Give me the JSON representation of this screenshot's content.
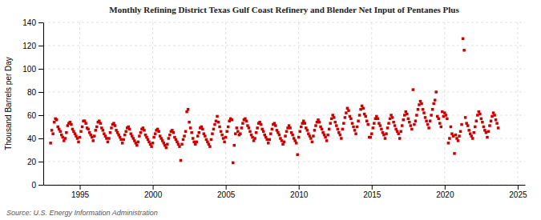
{
  "chart_data": {
    "type": "scatter",
    "title": "Monthly Refining District Texas Gulf Coast Refinery and Blender Net Input of Pentanes Plus",
    "ylabel": "Thousand Barrels per Day",
    "annotation": "Source: U.S. Energy Information Administration",
    "color": "#cc0000",
    "marker": "square",
    "grid": true,
    "xlim": [
      1992.5,
      2025.5
    ],
    "ylim": [
      0,
      140
    ],
    "xticks": [
      1995,
      2000,
      2005,
      2010,
      2015,
      2020,
      2025
    ],
    "yticks": [
      0,
      20,
      40,
      60,
      80,
      100,
      120,
      140
    ],
    "x": [
      1993.0,
      1993.083,
      1993.167,
      1993.25,
      1993.333,
      1993.417,
      1993.5,
      1993.583,
      1993.667,
      1993.75,
      1993.833,
      1993.917,
      1994.0,
      1994.083,
      1994.167,
      1994.25,
      1994.333,
      1994.417,
      1994.5,
      1994.583,
      1994.667,
      1994.75,
      1994.833,
      1994.917,
      1995.0,
      1995.083,
      1995.167,
      1995.25,
      1995.333,
      1995.417,
      1995.5,
      1995.583,
      1995.667,
      1995.75,
      1995.833,
      1995.917,
      1996.0,
      1996.083,
      1996.167,
      1996.25,
      1996.333,
      1996.417,
      1996.5,
      1996.583,
      1996.667,
      1996.75,
      1996.833,
      1996.917,
      1997.0,
      1997.083,
      1997.167,
      1997.25,
      1997.333,
      1997.417,
      1997.5,
      1997.583,
      1997.667,
      1997.75,
      1997.833,
      1997.917,
      1998.0,
      1998.083,
      1998.167,
      1998.25,
      1998.333,
      1998.417,
      1998.5,
      1998.583,
      1998.667,
      1998.75,
      1998.833,
      1998.917,
      1999.0,
      1999.083,
      1999.167,
      1999.25,
      1999.333,
      1999.417,
      1999.5,
      1999.583,
      1999.667,
      1999.75,
      1999.833,
      1999.917,
      2000.0,
      2000.083,
      2000.167,
      2000.25,
      2000.333,
      2000.417,
      2000.5,
      2000.583,
      2000.667,
      2000.75,
      2000.833,
      2000.917,
      2001.0,
      2001.083,
      2001.167,
      2001.25,
      2001.333,
      2001.417,
      2001.5,
      2001.583,
      2001.667,
      2001.75,
      2001.833,
      2001.917,
      2002.0,
      2002.083,
      2002.167,
      2002.25,
      2002.333,
      2002.417,
      2002.5,
      2002.583,
      2002.667,
      2002.75,
      2002.833,
      2002.917,
      2003.0,
      2003.083,
      2003.167,
      2003.25,
      2003.333,
      2003.417,
      2003.5,
      2003.583,
      2003.667,
      2003.75,
      2003.833,
      2003.917,
      2004.0,
      2004.083,
      2004.167,
      2004.25,
      2004.333,
      2004.417,
      2004.5,
      2004.583,
      2004.667,
      2004.75,
      2004.833,
      2004.917,
      2005.0,
      2005.083,
      2005.167,
      2005.25,
      2005.333,
      2005.417,
      2005.5,
      2005.583,
      2005.667,
      2005.75,
      2005.833,
      2005.917,
      2006.0,
      2006.083,
      2006.167,
      2006.25,
      2006.333,
      2006.417,
      2006.5,
      2006.583,
      2006.667,
      2006.75,
      2006.833,
      2006.917,
      2007.0,
      2007.083,
      2007.167,
      2007.25,
      2007.333,
      2007.417,
      2007.5,
      2007.583,
      2007.667,
      2007.75,
      2007.833,
      2007.917,
      2008.0,
      2008.083,
      2008.167,
      2008.25,
      2008.333,
      2008.417,
      2008.5,
      2008.583,
      2008.667,
      2008.75,
      2008.833,
      2008.917,
      2009.0,
      2009.083,
      2009.167,
      2009.25,
      2009.333,
      2009.417,
      2009.5,
      2009.583,
      2009.667,
      2009.75,
      2009.833,
      2009.917,
      2010.0,
      2010.083,
      2010.167,
      2010.25,
      2010.333,
      2010.417,
      2010.5,
      2010.583,
      2010.667,
      2010.75,
      2010.833,
      2010.917,
      2011.0,
      2011.083,
      2011.167,
      2011.25,
      2011.333,
      2011.417,
      2011.5,
      2011.583,
      2011.667,
      2011.75,
      2011.833,
      2011.917,
      2012.0,
      2012.083,
      2012.167,
      2012.25,
      2012.333,
      2012.417,
      2012.5,
      2012.583,
      2012.667,
      2012.75,
      2012.833,
      2012.917,
      2013.0,
      2013.083,
      2013.167,
      2013.25,
      2013.333,
      2013.417,
      2013.5,
      2013.583,
      2013.667,
      2013.75,
      2013.833,
      2013.917,
      2014.0,
      2014.083,
      2014.167,
      2014.25,
      2014.333,
      2014.417,
      2014.5,
      2014.583,
      2014.667,
      2014.75,
      2014.833,
      2014.917,
      2015.0,
      2015.083,
      2015.167,
      2015.25,
      2015.333,
      2015.417,
      2015.5,
      2015.583,
      2015.667,
      2015.75,
      2015.833,
      2015.917,
      2016.0,
      2016.083,
      2016.167,
      2016.25,
      2016.333,
      2016.417,
      2016.5,
      2016.583,
      2016.667,
      2016.75,
      2016.833,
      2016.917,
      2017.0,
      2017.083,
      2017.167,
      2017.25,
      2017.333,
      2017.417,
      2017.5,
      2017.583,
      2017.667,
      2017.75,
      2017.833,
      2017.917,
      2018.0,
      2018.083,
      2018.167,
      2018.25,
      2018.333,
      2018.417,
      2018.5,
      2018.583,
      2018.667,
      2018.75,
      2018.833,
      2018.917,
      2019.0,
      2019.083,
      2019.167,
      2019.25,
      2019.333,
      2019.417,
      2019.5,
      2019.583,
      2019.667,
      2019.75,
      2019.833,
      2019.917,
      2020.0,
      2020.083,
      2020.167,
      2020.25,
      2020.333,
      2020.417,
      2020.5,
      2020.583,
      2020.667,
      2020.75,
      2020.833,
      2020.917,
      2021.0,
      2021.083,
      2021.167,
      2021.25,
      2021.333,
      2021.417,
      2021.5,
      2021.583,
      2021.667,
      2021.75,
      2021.833,
      2021.917,
      2022.0,
      2022.083,
      2022.167,
      2022.25,
      2022.333,
      2022.417,
      2022.5,
      2022.583,
      2022.667,
      2022.75,
      2022.833,
      2022.917,
      2023.0,
      2023.083,
      2023.167,
      2023.25,
      2023.333,
      2023.417,
      2023.5,
      2023.583,
      2023.667
    ],
    "values": [
      36,
      47,
      44,
      54,
      57,
      56,
      50,
      48,
      46,
      43,
      41,
      38,
      40,
      45,
      51,
      53,
      54,
      52,
      48,
      46,
      44,
      42,
      40,
      37,
      41,
      46,
      50,
      55,
      55,
      53,
      49,
      48,
      45,
      43,
      41,
      38,
      42,
      47,
      50,
      54,
      55,
      53,
      49,
      47,
      44,
      42,
      40,
      37,
      40,
      45,
      49,
      52,
      53,
      51,
      47,
      45,
      43,
      41,
      39,
      36,
      39,
      43,
      46,
      49,
      50,
      48,
      44,
      42,
      40,
      38,
      36,
      34,
      37,
      42,
      45,
      48,
      49,
      47,
      43,
      41,
      39,
      37,
      35,
      33,
      36,
      41,
      44,
      47,
      48,
      46,
      42,
      40,
      38,
      36,
      34,
      32,
      35,
      40,
      43,
      46,
      47,
      45,
      41,
      39,
      37,
      35,
      33,
      21,
      35,
      39,
      42,
      46,
      63,
      65,
      54,
      49,
      45,
      40,
      37,
      35,
      37,
      42,
      45,
      49,
      50,
      48,
      44,
      42,
      39,
      37,
      35,
      33,
      39,
      44,
      48,
      52,
      55,
      59,
      54,
      50,
      46,
      43,
      40,
      37,
      41,
      46,
      50,
      55,
      57,
      56,
      19,
      34,
      44,
      49,
      46,
      43,
      44,
      49,
      53,
      56,
      57,
      55,
      51,
      49,
      46,
      43,
      41,
      38,
      40,
      45,
      49,
      53,
      54,
      52,
      48,
      46,
      43,
      41,
      39,
      36,
      39,
      44,
      48,
      52,
      53,
      51,
      47,
      45,
      43,
      40,
      38,
      35,
      37,
      42,
      46,
      49,
      51,
      49,
      45,
      43,
      40,
      38,
      36,
      26,
      41,
      46,
      50,
      53,
      55,
      53,
      49,
      47,
      44,
      42,
      40,
      37,
      42,
      47,
      51,
      54,
      56,
      54,
      50,
      48,
      45,
      43,
      41,
      38,
      43,
      48,
      53,
      57,
      60,
      58,
      54,
      51,
      48,
      45,
      43,
      40,
      48,
      53,
      58,
      62,
      66,
      64,
      59,
      57,
      53,
      50,
      47,
      44,
      50,
      55,
      60,
      65,
      68,
      66,
      61,
      59,
      55,
      52,
      41,
      41,
      44,
      49,
      53,
      57,
      59,
      57,
      53,
      51,
      48,
      45,
      43,
      40,
      44,
      49,
      53,
      57,
      60,
      58,
      54,
      51,
      48,
      46,
      44,
      40,
      46,
      51,
      56,
      60,
      63,
      61,
      57,
      54,
      51,
      48,
      82,
      52,
      55,
      60,
      65,
      69,
      72,
      70,
      65,
      62,
      58,
      55,
      52,
      49,
      55,
      60,
      65,
      70,
      73,
      80,
      59,
      57,
      53,
      50,
      63,
      59,
      62,
      60,
      57,
      36,
      40,
      50,
      44,
      42,
      27,
      43,
      40,
      38,
      42,
      46,
      52,
      126,
      116,
      58,
      53,
      51,
      47,
      44,
      42,
      40,
      45,
      50,
      55,
      60,
      63,
      61,
      57,
      54,
      50,
      47,
      45,
      41,
      46,
      51,
      55,
      59,
      62,
      60,
      56,
      53,
      49
    ]
  }
}
